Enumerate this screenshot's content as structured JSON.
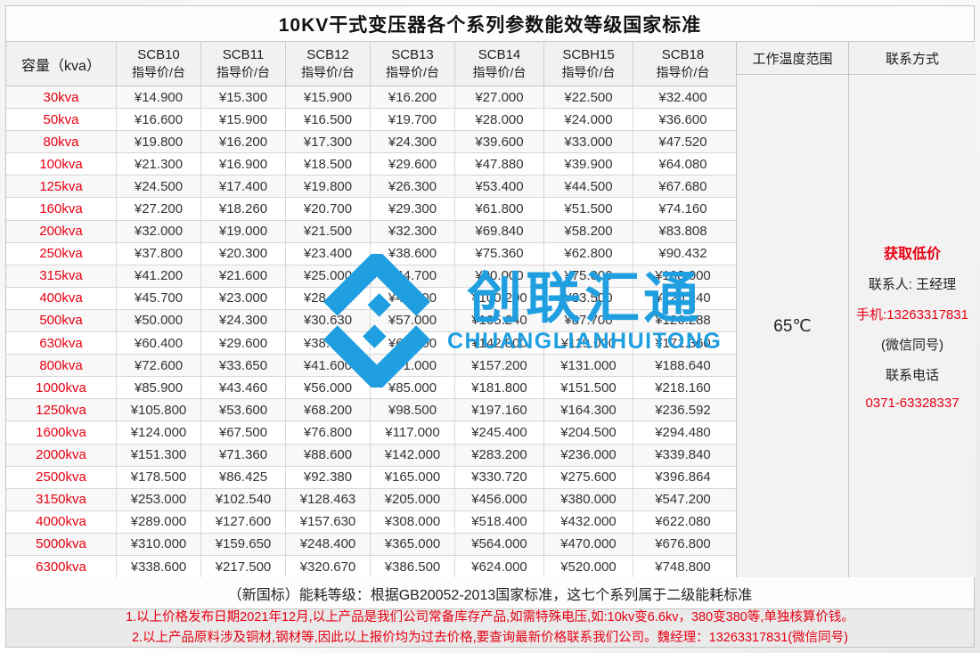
{
  "page": {
    "title": "10KV干式变压器各个系列参数能效等级国家标准"
  },
  "columns": {
    "capacity": "容量（kva）",
    "price_subtitle": "指导价/台",
    "series": [
      "SCB10",
      "SCB11",
      "SCB12",
      "SCB13",
      "SCB14",
      "SCBH15",
      "SCB18"
    ],
    "temperature": "工作温度范围",
    "contact": "联系方式"
  },
  "rows": [
    {
      "capacity": "30kva",
      "prices": [
        "¥14.900",
        "¥15.300",
        "¥15.900",
        "¥16.200",
        "¥27.000",
        "¥22.500",
        "¥32.400"
      ]
    },
    {
      "capacity": "50kva",
      "prices": [
        "¥16.600",
        "¥15.900",
        "¥16.500",
        "¥19.700",
        "¥28.000",
        "¥24.000",
        "¥36.600"
      ]
    },
    {
      "capacity": "80kva",
      "prices": [
        "¥19.800",
        "¥16.200",
        "¥17.300",
        "¥24.300",
        "¥39.600",
        "¥33.000",
        "¥47.520"
      ]
    },
    {
      "capacity": "100kva",
      "prices": [
        "¥21.300",
        "¥16.900",
        "¥18.500",
        "¥29.600",
        "¥47.880",
        "¥39.900",
        "¥64.080"
      ]
    },
    {
      "capacity": "125kva",
      "prices": [
        "¥24.500",
        "¥17.400",
        "¥19.800",
        "¥26.300",
        "¥53.400",
        "¥44.500",
        "¥67.680"
      ]
    },
    {
      "capacity": "160kva",
      "prices": [
        "¥27.200",
        "¥18.260",
        "¥20.700",
        "¥29.300",
        "¥61.800",
        "¥51.500",
        "¥74.160"
      ]
    },
    {
      "capacity": "200kva",
      "prices": [
        "¥32.000",
        "¥19.000",
        "¥21.500",
        "¥32.300",
        "¥69.840",
        "¥58.200",
        "¥83.808"
      ]
    },
    {
      "capacity": "250kva",
      "prices": [
        "¥37.800",
        "¥20.300",
        "¥23.400",
        "¥38.600",
        "¥75.360",
        "¥62.800",
        "¥90.432"
      ]
    },
    {
      "capacity": "315kva",
      "prices": [
        "¥41.200",
        "¥21.600",
        "¥25.000",
        "¥44.700",
        "¥90.000",
        "¥75.000",
        "¥108.000"
      ]
    },
    {
      "capacity": "400kva",
      "prices": [
        "¥45.700",
        "¥23.000",
        "¥28.300",
        "¥48.000",
        "¥100.200",
        "¥83.500",
        "¥120.240"
      ]
    },
    {
      "capacity": "500kva",
      "prices": [
        "¥50.000",
        "¥24.300",
        "¥30.630",
        "¥57.000",
        "¥105.240",
        "¥87.700",
        "¥126.288"
      ]
    },
    {
      "capacity": "630kva",
      "prices": [
        "¥60.400",
        "¥29.600",
        "¥38.630",
        "¥62.100",
        "¥142.800",
        "¥119.000",
        "¥171.360"
      ]
    },
    {
      "capacity": "800kva",
      "prices": [
        "¥72.600",
        "¥33.650",
        "¥41.600",
        "¥71.000",
        "¥157.200",
        "¥131.000",
        "¥188.640"
      ]
    },
    {
      "capacity": "1000kva",
      "prices": [
        "¥85.900",
        "¥43.460",
        "¥56.000",
        "¥85.000",
        "¥181.800",
        "¥151.500",
        "¥218.160"
      ]
    },
    {
      "capacity": "1250kva",
      "prices": [
        "¥105.800",
        "¥53.600",
        "¥68.200",
        "¥98.500",
        "¥197.160",
        "¥164.300",
        "¥236.592"
      ]
    },
    {
      "capacity": "1600kva",
      "prices": [
        "¥124.000",
        "¥67.500",
        "¥76.800",
        "¥117.000",
        "¥245.400",
        "¥204.500",
        "¥294.480"
      ]
    },
    {
      "capacity": "2000kva",
      "prices": [
        "¥151.300",
        "¥71.360",
        "¥88.600",
        "¥142.000",
        "¥283.200",
        "¥236.000",
        "¥339.840"
      ]
    },
    {
      "capacity": "2500kva",
      "prices": [
        "¥178.500",
        "¥86.425",
        "¥92.380",
        "¥165.000",
        "¥330.720",
        "¥275.600",
        "¥396.864"
      ]
    },
    {
      "capacity": "3150kva",
      "prices": [
        "¥253.000",
        "¥102.540",
        "¥128.463",
        "¥205.000",
        "¥456.000",
        "¥380.000",
        "¥547.200"
      ]
    },
    {
      "capacity": "4000kva",
      "prices": [
        "¥289.000",
        "¥127.600",
        "¥157.630",
        "¥308.000",
        "¥518.400",
        "¥432.000",
        "¥622.080"
      ]
    },
    {
      "capacity": "5000kva",
      "prices": [
        "¥310.000",
        "¥159.650",
        "¥248.400",
        "¥365.000",
        "¥564.000",
        "¥470.000",
        "¥676.800"
      ]
    },
    {
      "capacity": "6300kva",
      "prices": [
        "¥338.600",
        "¥217.500",
        "¥320.670",
        "¥386.500",
        "¥624.000",
        "¥520.000",
        "¥748.800"
      ]
    }
  ],
  "temperature_value": "65℃",
  "contact_info": {
    "lines": [
      {
        "text": "获取低价",
        "style": "red bold"
      },
      {
        "text": "联系人: 王经理",
        "style": ""
      },
      {
        "text": "手机:13263317831",
        "style": "red"
      },
      {
        "text": "(微信同号)",
        "style": ""
      },
      {
        "text": "联系电话",
        "style": ""
      },
      {
        "text": "0371-63328337",
        "style": "red"
      }
    ]
  },
  "notes": {
    "standard": "（新国标）能耗等级：根据GB20052-2013国家标准，这七个系列属于二级能耗标准",
    "line1": "1.以上价格发布日期2021年12月,以上产品是我们公司常备库存产品,如需特殊电压,如:10kv变6.6kv，380变380等,单独核算价钱。",
    "line2": "2.以上产品原料涉及铜材,钢材等,因此以上报价均为过去价格,要查询最新价格联系我们公司。魏经理：13263317831(微信同号)"
  },
  "watermark": {
    "cn": "创联汇通",
    "en": "CHUANGLIANHUITONG",
    "color": "#1f9fe0"
  },
  "colors": {
    "accent_red": "#e60012",
    "watermark_blue": "#1f9fe0"
  }
}
